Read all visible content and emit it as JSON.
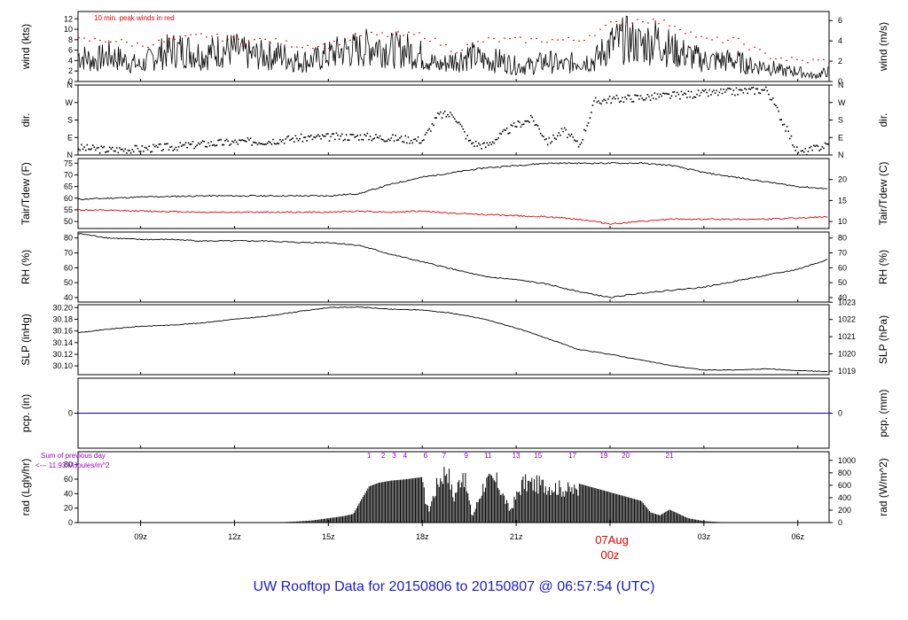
{
  "title": "UW Rooftop Data for 20150806  to  20150807 @ 06:57:54  (UTC)",
  "colors": {
    "axis": "#000000",
    "peak": "#dd0000",
    "dew": "#dd0000",
    "pcp": "#0000cc",
    "title": "#1a1acc",
    "rad_note": "#9900cc",
    "date_label": "#dd0000"
  },
  "x_axis": {
    "ticks": [
      "09z",
      "12z",
      "15z",
      "18z",
      "21z",
      "00z",
      "03z",
      "06z"
    ],
    "tick_hours": [
      2,
      5,
      8,
      11,
      14,
      17,
      20,
      23
    ],
    "date_label": "07Aug",
    "date_label_hour": 17,
    "range_hours": [
      0,
      24
    ]
  },
  "chart_data": [
    {
      "type": "line",
      "panel": "wind",
      "ylabel_left": "wind (kts)",
      "ylabel_right": "wind (m/s)",
      "left_ticks": [
        "0",
        "2",
        "4",
        "6",
        "8",
        "10",
        "12"
      ],
      "right_ticks": [
        "0",
        "2",
        "4",
        "6"
      ],
      "ylim": [
        0,
        13.4
      ],
      "annotation": "10 min. peak winds in red",
      "series": [
        {
          "x": [
            0.0,
            0.5,
            1.0,
            1.5,
            2.0,
            2.5,
            3.0,
            3.5,
            4.0,
            4.5,
            5.0,
            5.5,
            6.0,
            6.5,
            7.0,
            7.5,
            8.0,
            8.5,
            9.0,
            9.5,
            10.0,
            10.5,
            11.0,
            11.5,
            12.0,
            12.5,
            13.0,
            13.5,
            14.0,
            14.5,
            15.0,
            15.5,
            16.0,
            16.5,
            17.0,
            17.5,
            18.0,
            18.5,
            19.0,
            19.5,
            20.0,
            20.5,
            21.0,
            21.5,
            22.0,
            22.5,
            23.0,
            23.5,
            24.0
          ],
          "values": [
            5,
            4,
            5,
            4,
            3,
            5,
            6,
            6,
            5,
            6,
            6,
            5,
            5,
            5,
            4,
            4,
            5,
            6,
            6,
            7,
            6,
            6,
            5,
            3,
            4,
            5,
            4,
            4,
            3,
            3,
            4,
            3,
            4,
            4,
            7,
            8,
            7,
            8,
            6,
            5,
            4,
            4,
            4,
            3,
            3,
            2,
            2,
            1,
            2
          ]
        },
        {
          "name": "10 min. peak winds",
          "x": [
            0.0,
            1.0,
            2.0,
            3.0,
            4.0,
            5.0,
            6.0,
            7.0,
            8.0,
            9.0,
            10.0,
            11.0,
            12.0,
            13.0,
            14.0,
            15.0,
            16.0,
            17.0,
            18.0,
            19.0,
            20.0,
            21.0,
            22.0,
            23.0
          ],
          "values": [
            8,
            8,
            7,
            8,
            9,
            8,
            8,
            7,
            7,
            9,
            9,
            9,
            6,
            8,
            8,
            8,
            8,
            11,
            12,
            11,
            8,
            8,
            5,
            4
          ]
        }
      ]
    },
    {
      "type": "scatter",
      "panel": "dir",
      "ylabel_left": "dir.",
      "ylabel_right": "dir.",
      "left_ticks": [
        "N",
        "E",
        "S",
        "W",
        "N"
      ],
      "right_ticks": [
        "N",
        "E",
        "S",
        "W",
        "N"
      ],
      "ylim": [
        0,
        360
      ],
      "series": [
        {
          "x": [
            0,
            1,
            2,
            3,
            4,
            5,
            6,
            7,
            8,
            9,
            10,
            11,
            11.5,
            12,
            12.5,
            13,
            14,
            14.5,
            15,
            15.5,
            16,
            16.5,
            17,
            18,
            19,
            20,
            21,
            22,
            23,
            24
          ],
          "values": [
            40,
            30,
            35,
            45,
            60,
            70,
            75,
            90,
            95,
            100,
            90,
            80,
            210,
            210,
            70,
            50,
            160,
            190,
            70,
            130,
            50,
            280,
            290,
            300,
            310,
            320,
            330,
            340,
            10,
            60
          ]
        }
      ]
    },
    {
      "type": "line",
      "panel": "temperature",
      "ylabel_left": "Tair/Tdew (F)",
      "ylabel_right": "Tair/Tdew (C)",
      "left_ticks": [
        "50",
        "55",
        "60",
        "65",
        "70",
        "75"
      ],
      "right_ticks": [
        "10",
        "15",
        "20"
      ],
      "ylim": [
        47,
        77
      ],
      "series": [
        {
          "x": [
            0,
            2,
            4,
            6,
            8,
            9,
            10,
            11,
            12,
            13,
            14,
            15,
            16,
            17,
            18,
            19,
            20,
            21,
            22,
            23,
            24
          ],
          "values": [
            59.5,
            60.5,
            61,
            61,
            61,
            62,
            66,
            69,
            71,
            73,
            74,
            75,
            75,
            75,
            75,
            74,
            71,
            69,
            67,
            65,
            64
          ]
        },
        {
          "x": [
            0,
            2,
            4,
            6,
            8,
            9,
            10,
            11,
            12,
            13,
            14,
            15,
            16,
            17,
            18,
            19,
            20,
            21,
            22,
            23,
            24
          ],
          "values": [
            55,
            54.5,
            54,
            54,
            54,
            54.5,
            54,
            54.5,
            53.5,
            53,
            52.5,
            52,
            51,
            49,
            50,
            51,
            51,
            51,
            51,
            51.5,
            52
          ]
        }
      ]
    },
    {
      "type": "line",
      "panel": "rh",
      "ylabel_left": "RH (%)",
      "ylabel_right": "RH (%)",
      "left_ticks": [
        "40",
        "50",
        "60",
        "70",
        "80"
      ],
      "right_ticks": [
        "40",
        "50",
        "60",
        "70",
        "80"
      ],
      "ylim": [
        37,
        84
      ],
      "series": [
        {
          "x": [
            0,
            1,
            2,
            3,
            4,
            5,
            6,
            7,
            8,
            9,
            10,
            11,
            12,
            13,
            14,
            15,
            16,
            17,
            18,
            19,
            20,
            21,
            22,
            23,
            24
          ],
          "values": [
            83,
            80,
            79,
            79,
            78,
            78,
            78,
            77,
            77,
            75,
            69,
            64,
            59,
            54,
            52,
            49,
            44,
            40,
            43,
            45,
            47,
            51,
            55,
            59,
            66
          ]
        }
      ]
    },
    {
      "type": "line",
      "panel": "slp",
      "ylabel_left": "SLP (inHg)",
      "ylabel_right": "SLP (hPa)",
      "left_ticks": [
        "30.10",
        "30.12",
        "30.14",
        "30.16",
        "30.18",
        "30.20"
      ],
      "right_ticks": [
        "1019",
        "1020",
        "1021",
        "1022",
        "1023"
      ],
      "ylim": [
        30.085,
        30.205
      ],
      "series": [
        {
          "x": [
            0,
            1,
            2,
            3,
            4,
            5,
            6,
            7,
            8,
            9,
            10,
            11,
            12,
            13,
            14,
            15,
            16,
            17,
            18,
            19,
            20,
            21,
            22,
            23,
            24
          ],
          "values": [
            30.157,
            30.163,
            30.168,
            30.17,
            30.174,
            30.18,
            30.185,
            30.193,
            30.2,
            30.201,
            30.197,
            30.196,
            30.19,
            30.18,
            30.165,
            30.147,
            30.128,
            30.12,
            30.11,
            30.1,
            30.093,
            30.093,
            30.095,
            30.092,
            30.09
          ]
        }
      ]
    },
    {
      "type": "line",
      "panel": "pcp",
      "ylabel_left": "pcp. (in)",
      "ylabel_right": "pcp. (mm)",
      "left_ticks": [
        "0"
      ],
      "right_ticks": [
        "0"
      ],
      "ylim": [
        -1,
        1
      ],
      "series": [
        {
          "x": [
            0,
            24
          ],
          "values": [
            0,
            0
          ]
        }
      ]
    },
    {
      "type": "area",
      "panel": "rad",
      "ylabel_left": "rad (Lgly/hr)",
      "ylabel_right": "rad (W/m^2)",
      "left_ticks": [
        "0",
        "20",
        "40",
        "60",
        "80"
      ],
      "right_ticks": [
        "0",
        "200",
        "400",
        "600",
        "800",
        "1000"
      ],
      "ylim": [
        0,
        98
      ],
      "sum_note_line1": "Sum of previous day",
      "sum_note_line2": "<--- 11.93 MJoules/m^2",
      "hour_labels": [
        "1",
        "2",
        "3",
        "4",
        "6",
        "7",
        "9",
        "11",
        "13",
        "15",
        "17",
        "19",
        "20",
        "21"
      ],
      "hour_label_positions": [
        9.3,
        9.75,
        10.1,
        10.45,
        11.1,
        11.7,
        12.4,
        13.1,
        14.0,
        14.7,
        15.8,
        16.8,
        17.5,
        18.9
      ],
      "series": [
        {
          "x": [
            0,
            5.5,
            6.5,
            7.0,
            7.5,
            8.0,
            8.5,
            8.8,
            9.0,
            9.3,
            9.6,
            10.0,
            10.5,
            11.0,
            11.2,
            11.5,
            11.8,
            12.0,
            12.3,
            12.6,
            13.0,
            13.4,
            13.8,
            14.2,
            14.6,
            15.0,
            15.5,
            16.0,
            16.5,
            17.0,
            17.5,
            18.0,
            18.3,
            18.6,
            18.9,
            19.2,
            19.5,
            20.0,
            20.5,
            21.0,
            22.0,
            24.0
          ],
          "values": [
            0,
            0,
            0.5,
            1.5,
            3,
            6,
            9,
            12,
            28,
            50,
            55,
            58,
            60,
            63,
            20,
            70,
            95,
            40,
            90,
            10,
            70,
            70,
            20,
            68,
            66,
            64,
            58,
            54,
            48,
            42,
            36,
            30,
            14,
            10,
            18,
            12,
            6,
            2,
            0.7,
            0.3,
            0,
            0
          ]
        }
      ]
    }
  ]
}
